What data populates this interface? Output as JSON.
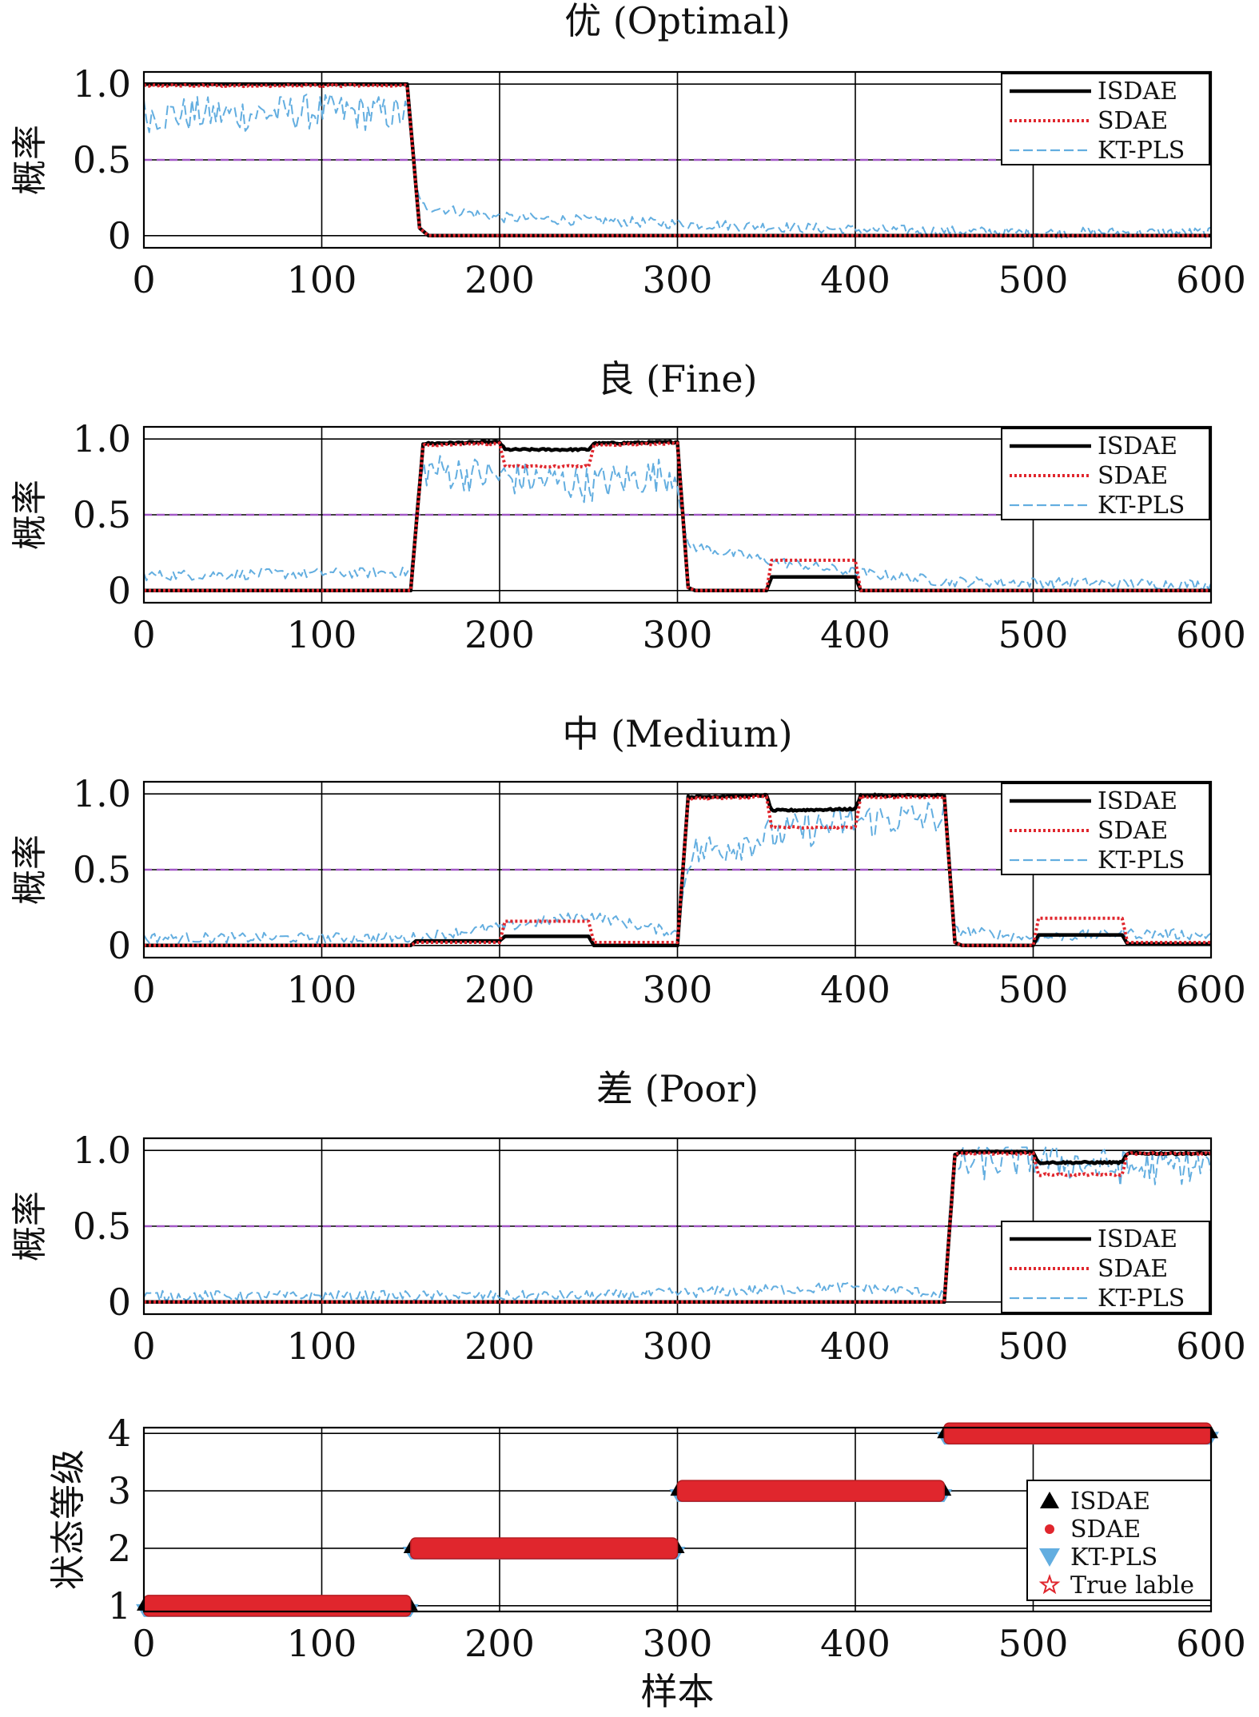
{
  "chart_data": [
    {
      "type": "line",
      "title": "优 (Optimal)",
      "ylabel": "概率",
      "xlabel": "",
      "xlim": [
        0,
        600
      ],
      "ylim": [
        -0.08,
        1.08
      ],
      "xticks": [
        "0",
        "100",
        "200",
        "300",
        "400",
        "500",
        "600"
      ],
      "yticks": [
        "0",
        "0.5",
        "1.0"
      ],
      "grid": true,
      "threshold": 0.5,
      "legend_position": "top-right",
      "series": [
        {
          "name": "ISDAE",
          "points": [
            [
              0,
              1.0
            ],
            [
              148,
              1.0
            ],
            [
              155,
              0.05
            ],
            [
              160,
              0.0
            ],
            [
              600,
              0.0
            ]
          ]
        },
        {
          "name": "SDAE",
          "points": [
            [
              0,
              0.99
            ],
            [
              148,
              0.99
            ],
            [
              155,
              0.05
            ],
            [
              160,
              0.0
            ],
            [
              600,
              0.0
            ]
          ]
        },
        {
          "name": "KT-PLS",
          "points": [
            [
              0,
              0.8
            ],
            [
              50,
              0.8
            ],
            [
              100,
              0.82
            ],
            [
              148,
              0.8
            ],
            [
              155,
              0.2
            ],
            [
              200,
              0.12
            ],
            [
              300,
              0.08
            ],
            [
              400,
              0.04
            ],
            [
              500,
              0.02
            ],
            [
              600,
              0.02
            ]
          ]
        }
      ]
    },
    {
      "type": "line",
      "title": "良 (Fine)",
      "ylabel": "概率",
      "xlabel": "",
      "xlim": [
        0,
        600
      ],
      "ylim": [
        -0.08,
        1.08
      ],
      "xticks": [
        "0",
        "100",
        "200",
        "300",
        "400",
        "500",
        "600"
      ],
      "yticks": [
        "0",
        "0.5",
        "1.0"
      ],
      "grid": true,
      "threshold": 0.5,
      "legend_position": "top-right",
      "series": [
        {
          "name": "ISDAE",
          "points": [
            [
              0,
              0.0
            ],
            [
              150,
              0.0
            ],
            [
              157,
              0.97
            ],
            [
              200,
              0.98
            ],
            [
              203,
              0.93
            ],
            [
              250,
              0.93
            ],
            [
              253,
              0.97
            ],
            [
              300,
              0.98
            ],
            [
              306,
              0.02
            ],
            [
              310,
              0.0
            ],
            [
              350,
              0.0
            ],
            [
              353,
              0.09
            ],
            [
              400,
              0.09
            ],
            [
              403,
              0.0
            ],
            [
              600,
              0.0
            ]
          ]
        },
        {
          "name": "SDAE",
          "points": [
            [
              0,
              0.0
            ],
            [
              150,
              0.0
            ],
            [
              157,
              0.96
            ],
            [
              200,
              0.97
            ],
            [
              203,
              0.82
            ],
            [
              250,
              0.82
            ],
            [
              253,
              0.96
            ],
            [
              300,
              0.97
            ],
            [
              306,
              0.02
            ],
            [
              310,
              0.0
            ],
            [
              350,
              0.0
            ],
            [
              353,
              0.2
            ],
            [
              400,
              0.2
            ],
            [
              403,
              0.0
            ],
            [
              600,
              0.0
            ]
          ]
        },
        {
          "name": "KT-PLS",
          "points": [
            [
              0,
              0.1
            ],
            [
              150,
              0.12
            ],
            [
              157,
              0.8
            ],
            [
              200,
              0.75
            ],
            [
              250,
              0.7
            ],
            [
              300,
              0.78
            ],
            [
              305,
              0.3
            ],
            [
              350,
              0.2
            ],
            [
              400,
              0.12
            ],
            [
              450,
              0.06
            ],
            [
              600,
              0.04
            ]
          ]
        }
      ]
    },
    {
      "type": "line",
      "title": "中 (Medium)",
      "ylabel": "概率",
      "xlabel": "",
      "xlim": [
        0,
        600
      ],
      "ylim": [
        -0.08,
        1.08
      ],
      "xticks": [
        "0",
        "100",
        "200",
        "300",
        "400",
        "500",
        "600"
      ],
      "yticks": [
        "0",
        "0.5",
        "1.0"
      ],
      "grid": true,
      "threshold": 0.5,
      "legend_position": "top-right",
      "series": [
        {
          "name": "ISDAE",
          "points": [
            [
              0,
              0.0
            ],
            [
              150,
              0.0
            ],
            [
              153,
              0.03
            ],
            [
              200,
              0.03
            ],
            [
              203,
              0.06
            ],
            [
              250,
              0.06
            ],
            [
              253,
              0.0
            ],
            [
              300,
              0.0
            ],
            [
              306,
              0.98
            ],
            [
              350,
              0.99
            ],
            [
              353,
              0.89
            ],
            [
              400,
              0.9
            ],
            [
              403,
              0.99
            ],
            [
              450,
              0.99
            ],
            [
              456,
              0.02
            ],
            [
              460,
              0.0
            ],
            [
              500,
              0.0
            ],
            [
              503,
              0.07
            ],
            [
              550,
              0.07
            ],
            [
              553,
              0.01
            ],
            [
              600,
              0.01
            ]
          ]
        },
        {
          "name": "SDAE",
          "points": [
            [
              0,
              0.0
            ],
            [
              150,
              0.0
            ],
            [
              153,
              0.02
            ],
            [
              200,
              0.02
            ],
            [
              203,
              0.16
            ],
            [
              250,
              0.16
            ],
            [
              253,
              0.02
            ],
            [
              300,
              0.02
            ],
            [
              306,
              0.97
            ],
            [
              350,
              0.98
            ],
            [
              353,
              0.78
            ],
            [
              400,
              0.78
            ],
            [
              403,
              0.98
            ],
            [
              450,
              0.98
            ],
            [
              456,
              0.02
            ],
            [
              460,
              0.0
            ],
            [
              500,
              0.0
            ],
            [
              503,
              0.18
            ],
            [
              550,
              0.18
            ],
            [
              553,
              0.02
            ],
            [
              600,
              0.02
            ]
          ]
        },
        {
          "name": "KT-PLS",
          "points": [
            [
              0,
              0.05
            ],
            [
              150,
              0.05
            ],
            [
              200,
              0.12
            ],
            [
              250,
              0.2
            ],
            [
              300,
              0.08
            ],
            [
              306,
              0.6
            ],
            [
              350,
              0.72
            ],
            [
              400,
              0.82
            ],
            [
              450,
              0.85
            ],
            [
              456,
              0.1
            ],
            [
              500,
              0.05
            ],
            [
              550,
              0.08
            ],
            [
              600,
              0.07
            ]
          ]
        }
      ]
    },
    {
      "type": "line",
      "title": "差 (Poor)",
      "ylabel": "概率",
      "xlabel": "",
      "xlim": [
        0,
        600
      ],
      "ylim": [
        -0.08,
        1.08
      ],
      "xticks": [
        "0",
        "100",
        "200",
        "300",
        "400",
        "500",
        "600"
      ],
      "yticks": [
        "0",
        "0.5",
        "1.0"
      ],
      "grid": true,
      "threshold": 0.5,
      "legend_position": "bottom-right",
      "series": [
        {
          "name": "ISDAE",
          "points": [
            [
              0,
              0.0
            ],
            [
              450,
              0.0
            ],
            [
              456,
              0.97
            ],
            [
              460,
              0.99
            ],
            [
              500,
              0.99
            ],
            [
              503,
              0.92
            ],
            [
              550,
              0.92
            ],
            [
              553,
              0.98
            ],
            [
              600,
              0.98
            ]
          ]
        },
        {
          "name": "SDAE",
          "points": [
            [
              0,
              0.0
            ],
            [
              450,
              0.0
            ],
            [
              456,
              0.97
            ],
            [
              460,
              0.98
            ],
            [
              500,
              0.98
            ],
            [
              503,
              0.84
            ],
            [
              550,
              0.84
            ],
            [
              553,
              0.98
            ],
            [
              600,
              0.98
            ]
          ]
        },
        {
          "name": "KT-PLS",
          "points": [
            [
              0,
              0.04
            ],
            [
              250,
              0.04
            ],
            [
              300,
              0.06
            ],
            [
              350,
              0.08
            ],
            [
              400,
              0.1
            ],
            [
              450,
              0.05
            ],
            [
              456,
              0.9
            ],
            [
              500,
              0.95
            ],
            [
              550,
              0.88
            ],
            [
              600,
              0.9
            ]
          ]
        }
      ]
    },
    {
      "type": "scatter",
      "title": "",
      "ylabel": "状态等级",
      "xlabel": "样本",
      "xlim": [
        0,
        600
      ],
      "ylim": [
        0.9,
        4.1
      ],
      "xticks": [
        "0",
        "100",
        "200",
        "300",
        "400",
        "500",
        "600"
      ],
      "yticks": [
        "1",
        "2",
        "3",
        "4"
      ],
      "grid": true,
      "legend_position": "bottom-right",
      "segments": [
        {
          "x_start": 0,
          "x_end": 150,
          "level": 1
        },
        {
          "x_start": 150,
          "x_end": 300,
          "level": 2
        },
        {
          "x_start": 300,
          "x_end": 450,
          "level": 3
        },
        {
          "x_start": 450,
          "x_end": 600,
          "level": 4
        }
      ],
      "series": [
        {
          "name": "ISDAE"
        },
        {
          "name": "SDAE"
        },
        {
          "name": "KT-PLS"
        },
        {
          "name": "True lable"
        }
      ]
    }
  ],
  "colors": {
    "ISDAE": "#000000",
    "SDAE": "#e0262d",
    "KT-PLS": "#63aee0",
    "threshold": "#a259c6",
    "true_label": "#e0262d"
  }
}
